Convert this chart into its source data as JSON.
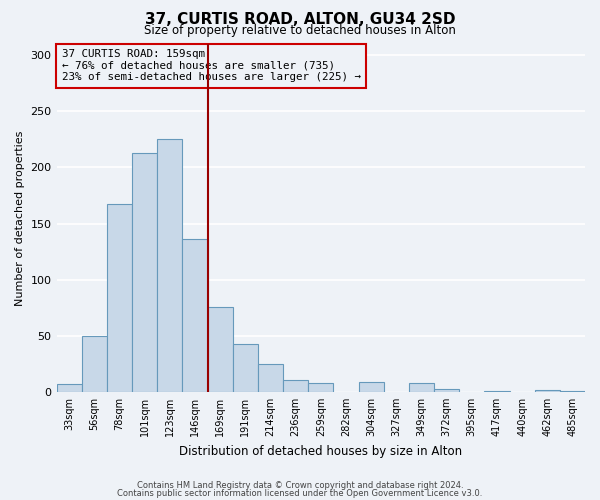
{
  "title": "37, CURTIS ROAD, ALTON, GU34 2SD",
  "subtitle": "Size of property relative to detached houses in Alton",
  "xlabel": "Distribution of detached houses by size in Alton",
  "ylabel": "Number of detached properties",
  "bar_labels": [
    "33sqm",
    "56sqm",
    "78sqm",
    "101sqm",
    "123sqm",
    "146sqm",
    "169sqm",
    "191sqm",
    "214sqm",
    "236sqm",
    "259sqm",
    "282sqm",
    "304sqm",
    "327sqm",
    "349sqm",
    "372sqm",
    "395sqm",
    "417sqm",
    "440sqm",
    "462sqm",
    "485sqm"
  ],
  "bar_values": [
    7,
    50,
    167,
    213,
    225,
    136,
    76,
    43,
    25,
    11,
    8,
    0,
    9,
    0,
    8,
    3,
    0,
    1,
    0,
    2,
    1
  ],
  "bar_color": "#c8d8e8",
  "bar_edge_color": "#6699bb",
  "vline_x": 5.5,
  "vline_color": "#990000",
  "annotation_title": "37 CURTIS ROAD: 159sqm",
  "annotation_line1": "← 76% of detached houses are smaller (735)",
  "annotation_line2": "23% of semi-detached houses are larger (225) →",
  "annotation_box_color": "#cc0000",
  "ylim": [
    0,
    310
  ],
  "yticks": [
    0,
    50,
    100,
    150,
    200,
    250,
    300
  ],
  "footer1": "Contains HM Land Registry data © Crown copyright and database right 2024.",
  "footer2": "Contains public sector information licensed under the Open Government Licence v3.0.",
  "background_color": "#eef2f7",
  "grid_color": "#ffffff"
}
